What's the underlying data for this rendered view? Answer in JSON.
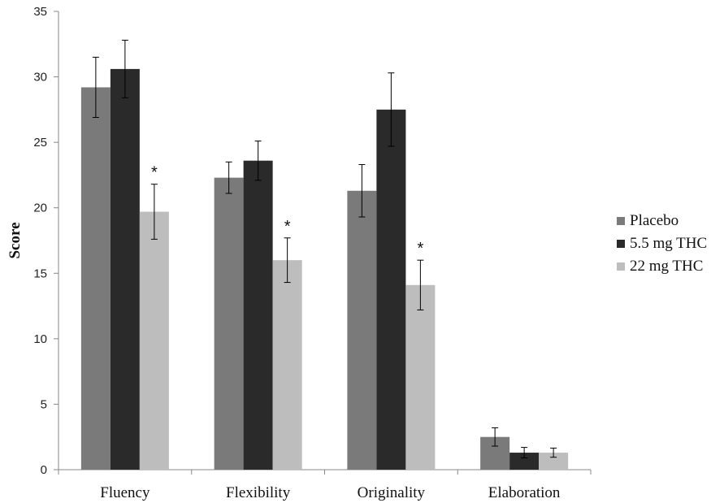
{
  "chart_data": {
    "type": "bar",
    "title": "",
    "xlabel": "",
    "ylabel": "Score",
    "ylim": [
      0,
      35
    ],
    "yticks": [
      0,
      5,
      10,
      15,
      20,
      25,
      30,
      35
    ],
    "grid": false,
    "legend_position": "right",
    "categories": [
      "Fluency",
      "Flexibility",
      "Originality",
      "Elaboration"
    ],
    "series": [
      {
        "name": "Placebo",
        "color": "#7a7a7a",
        "values": [
          29.2,
          22.3,
          21.3,
          2.5
        ],
        "errors": [
          2.3,
          1.2,
          2.0,
          0.7
        ]
      },
      {
        "name": "5.5 mg THC",
        "color": "#2a2a2a",
        "values": [
          30.6,
          23.6,
          27.5,
          1.3
        ],
        "errors": [
          2.2,
          1.5,
          2.8,
          0.4
        ]
      },
      {
        "name": "22 mg THC",
        "color": "#bdbdbd",
        "values": [
          19.7,
          16.0,
          14.1,
          1.3
        ],
        "errors": [
          2.1,
          1.7,
          1.9,
          0.35
        ]
      }
    ],
    "annotations": [
      {
        "text": "*",
        "category": "Fluency",
        "series": "22 mg THC"
      },
      {
        "text": "*",
        "category": "Flexibility",
        "series": "22 mg THC"
      },
      {
        "text": "*",
        "category": "Originality",
        "series": "22 mg THC"
      }
    ]
  }
}
